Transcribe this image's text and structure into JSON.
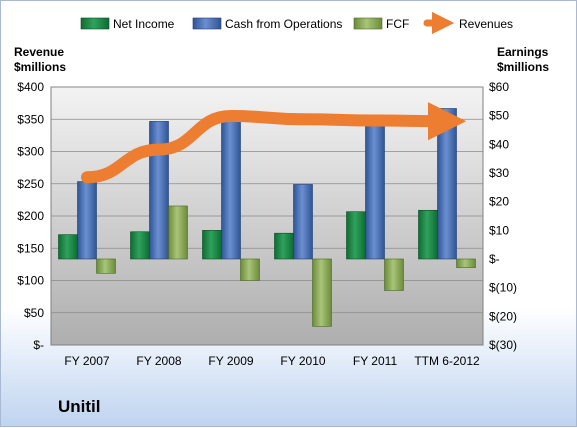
{
  "company": "Unitil",
  "chart_data": {
    "type": "bar",
    "categories": [
      "FY 2007",
      "FY 2008",
      "FY 2009",
      "FY 2010",
      "FY 2011",
      "TTM 6-2012"
    ],
    "left_axis": {
      "title_line1": "Revenue",
      "title_line2": "$millions",
      "range": [
        0,
        400
      ],
      "ticks": [
        0,
        50,
        100,
        150,
        200,
        250,
        300,
        350,
        400
      ],
      "tick_labels": [
        "$-",
        "$50",
        "$100",
        "$150",
        "$200",
        "$250",
        "$300",
        "$350",
        "$400"
      ]
    },
    "right_axis": {
      "title_line1": "Earnings",
      "title_line2": "$millions",
      "range": [
        -30,
        60
      ],
      "ticks": [
        -30,
        -20,
        -10,
        0,
        10,
        20,
        30,
        40,
        50,
        60
      ],
      "tick_labels": [
        "$(30)",
        "$(20)",
        "$(10)",
        "$-",
        "$10",
        "$20",
        "$30",
        "$40",
        "$50",
        "$60"
      ]
    },
    "series": [
      {
        "name": "Net Income",
        "axis": "right",
        "kind": "bar",
        "color": "#1f8a4a",
        "values": [
          8.5,
          9.5,
          10,
          9,
          16.5,
          17
        ]
      },
      {
        "name": "Cash from Operations",
        "axis": "right",
        "kind": "bar",
        "color": "#4a70b8",
        "values": [
          27,
          48,
          51.5,
          26,
          46.5,
          52.5
        ]
      },
      {
        "name": "FCF",
        "axis": "right",
        "kind": "bar",
        "color": "#8fae5a",
        "values": [
          -5,
          18.5,
          -7.5,
          -23.5,
          -11,
          -3
        ]
      },
      {
        "name": "Revenues",
        "axis": "left",
        "kind": "line",
        "color": "#ed7d31",
        "values": [
          260,
          303,
          355,
          350,
          348,
          347
        ]
      }
    ],
    "grid": true,
    "legend_position": "top"
  }
}
